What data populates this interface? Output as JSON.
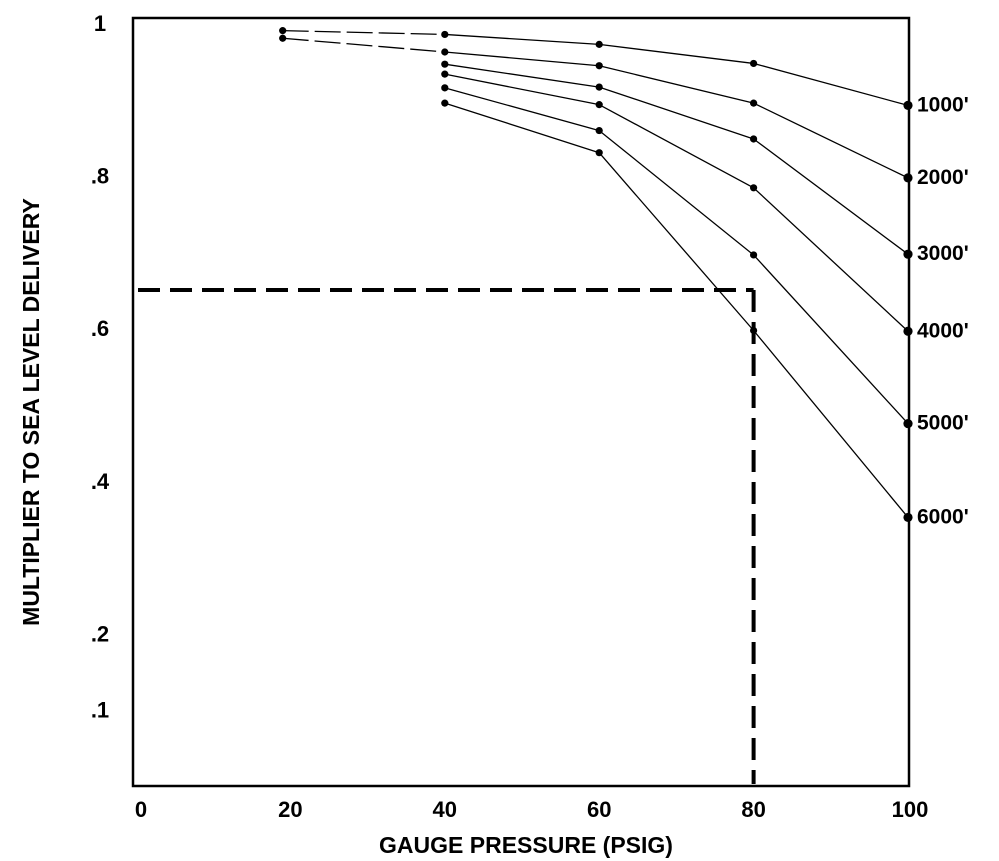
{
  "chart_data": {
    "type": "line",
    "xlabel": "GAUGE PRESSURE (PSIG)",
    "ylabel": "MULTIPLIER TO SEA LEVEL DELIVERY",
    "xlim": [
      0,
      100
    ],
    "ylim": [
      0,
      1
    ],
    "x_ticks": [
      "0",
      "20",
      "40",
      "60",
      "80",
      "100"
    ],
    "y_ticks": [
      {
        "value": 1,
        "label": "1"
      },
      {
        "value": 0.8,
        "label": ".8"
      },
      {
        "value": 0.6,
        "label": ".6"
      },
      {
        "value": 0.4,
        "label": ".4"
      },
      {
        "value": 0.2,
        "label": ".2"
      },
      {
        "value": 0.1,
        "label": ".1"
      }
    ],
    "grid": false,
    "series": [
      {
        "name": "1000'",
        "points": [
          [
            19,
            0.99
          ],
          [
            40,
            0.985
          ],
          [
            60,
            0.972
          ],
          [
            80,
            0.947
          ],
          [
            100,
            0.892
          ]
        ]
      },
      {
        "name": "2000'",
        "points": [
          [
            19,
            0.98
          ],
          [
            40,
            0.962
          ],
          [
            60,
            0.944
          ],
          [
            80,
            0.895
          ],
          [
            100,
            0.797
          ]
        ]
      },
      {
        "name": "3000'",
        "points": [
          [
            40,
            0.946
          ],
          [
            60,
            0.916
          ],
          [
            80,
            0.848
          ],
          [
            100,
            0.697
          ]
        ]
      },
      {
        "name": "4000'",
        "points": [
          [
            40,
            0.933
          ],
          [
            60,
            0.893
          ],
          [
            80,
            0.784
          ],
          [
            100,
            0.596
          ]
        ]
      },
      {
        "name": "5000'",
        "points": [
          [
            40,
            0.915
          ],
          [
            60,
            0.859
          ],
          [
            80,
            0.696
          ],
          [
            100,
            0.475
          ]
        ]
      },
      {
        "name": "6000'",
        "points": [
          [
            40,
            0.895
          ],
          [
            60,
            0.83
          ],
          [
            80,
            0.597
          ],
          [
            100,
            0.352
          ]
        ]
      }
    ],
    "annotation": {
      "style": "dashed",
      "x": 80,
      "y": 0.65
    }
  }
}
